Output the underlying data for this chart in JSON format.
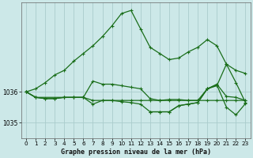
{
  "title": "Graphe pression niveau de la mer (hPa)",
  "bg_color": "#cce8e8",
  "grid_color": "#aacccc",
  "line_color": "#1a6e1a",
  "xlim": [
    -0.5,
    23.5
  ],
  "ylim": [
    1034.5,
    1038.9
  ],
  "yticks": [
    1035,
    1036
  ],
  "xticks": [
    0,
    1,
    2,
    3,
    4,
    5,
    6,
    7,
    8,
    9,
    10,
    11,
    12,
    13,
    14,
    15,
    16,
    17,
    18,
    19,
    20,
    21,
    22,
    23
  ],
  "series": [
    {
      "x": [
        0,
        1,
        2,
        3,
        4,
        5,
        6,
        7,
        8,
        9,
        10,
        11,
        12,
        13,
        14,
        15,
        16,
        17,
        18,
        19,
        20,
        21,
        22,
        23
      ],
      "y": [
        1036.0,
        1036.1,
        1036.3,
        1036.55,
        1036.7,
        1037.0,
        1037.25,
        1037.5,
        1037.8,
        1038.15,
        1038.55,
        1038.65,
        1038.05,
        1037.45,
        1037.25,
        1037.05,
        1037.1,
        1037.3,
        1037.45,
        1037.7,
        1037.5,
        1036.9,
        1036.7,
        1036.6
      ]
    },
    {
      "x": [
        0,
        1,
        4,
        5,
        6,
        7,
        8,
        9,
        10,
        11,
        12,
        13,
        14,
        15,
        16,
        17,
        18,
        19,
        20,
        21,
        22,
        23
      ],
      "y": [
        1036.0,
        1035.82,
        1035.82,
        1035.82,
        1035.82,
        1036.35,
        1036.25,
        1036.25,
        1036.2,
        1036.15,
        1036.1,
        1035.78,
        1035.72,
        1035.75,
        1035.75,
        1035.72,
        1035.72,
        1036.1,
        1036.25,
        1035.85,
        1035.82,
        1035.72
      ]
    },
    {
      "x": [
        0,
        1,
        2,
        3,
        4,
        5,
        6,
        7,
        8,
        9,
        10,
        11,
        12,
        13,
        14,
        15,
        16,
        17,
        18,
        19,
        20,
        21,
        22,
        23
      ],
      "y": [
        1036.0,
        1035.82,
        1035.78,
        1035.78,
        1035.82,
        1035.82,
        1035.82,
        1035.72,
        1035.72,
        1035.72,
        1035.72,
        1035.72,
        1035.72,
        1035.72,
        1035.72,
        1035.72,
        1035.72,
        1035.72,
        1035.72,
        1035.72,
        1035.72,
        1035.72,
        1035.72,
        1035.72
      ]
    },
    {
      "x": [
        0,
        1,
        2,
        3,
        4,
        5,
        6,
        7,
        8,
        9,
        10,
        11,
        12,
        13,
        14,
        15,
        16,
        17,
        18,
        19,
        20,
        21,
        22,
        23
      ],
      "y": [
        1036.0,
        1035.82,
        1035.78,
        1035.78,
        1035.82,
        1035.82,
        1035.82,
        1035.6,
        1035.72,
        1035.72,
        1035.68,
        1035.65,
        1035.6,
        1035.35,
        1035.35,
        1035.35,
        1035.55,
        1035.6,
        1035.65,
        1036.1,
        1036.2,
        1036.9,
        1036.3,
        1035.65
      ]
    },
    {
      "x": [
        13,
        14,
        15,
        16,
        17,
        18,
        19,
        20,
        21,
        22,
        23
      ],
      "y": [
        1035.35,
        1035.35,
        1035.35,
        1035.55,
        1035.6,
        1035.65,
        1036.1,
        1036.22,
        1035.5,
        1035.25,
        1035.62
      ]
    }
  ]
}
